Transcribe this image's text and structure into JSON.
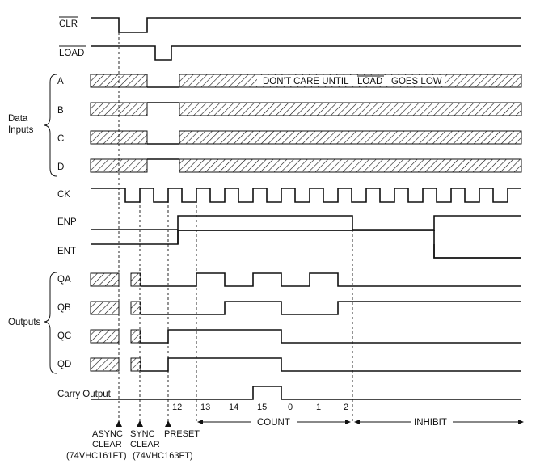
{
  "signals": {
    "clr": "CLR",
    "load": "LOAD",
    "a": "A",
    "b": "B",
    "c": "C",
    "d": "D",
    "ck": "CK",
    "enp": "ENP",
    "ent": "ENT",
    "qa": "QA",
    "qb": "QB",
    "qc": "QC",
    "qd": "QD",
    "carry": "Carry Output"
  },
  "groups": {
    "data_inputs_line1": "Data",
    "data_inputs_line2": "Inputs",
    "outputs": "Outputs"
  },
  "banner": {
    "prefix": "DON’T CARE UNTIL",
    "load": "LOAD",
    "suffix": "GOES LOW"
  },
  "count_labels": [
    "12",
    "13",
    "14",
    "15",
    "0",
    "1",
    "2"
  ],
  "phases": {
    "count": "COUNT",
    "inhibit": "INHIBIT"
  },
  "markers": {
    "async_line1": "ASYNC",
    "async_line2": "CLEAR",
    "async_part": "(74VHC161FT)",
    "sync_line1": "SYNC",
    "sync_line2": "CLEAR",
    "sync_part": "(74VHC163FT)",
    "preset": "PRESET"
  }
}
